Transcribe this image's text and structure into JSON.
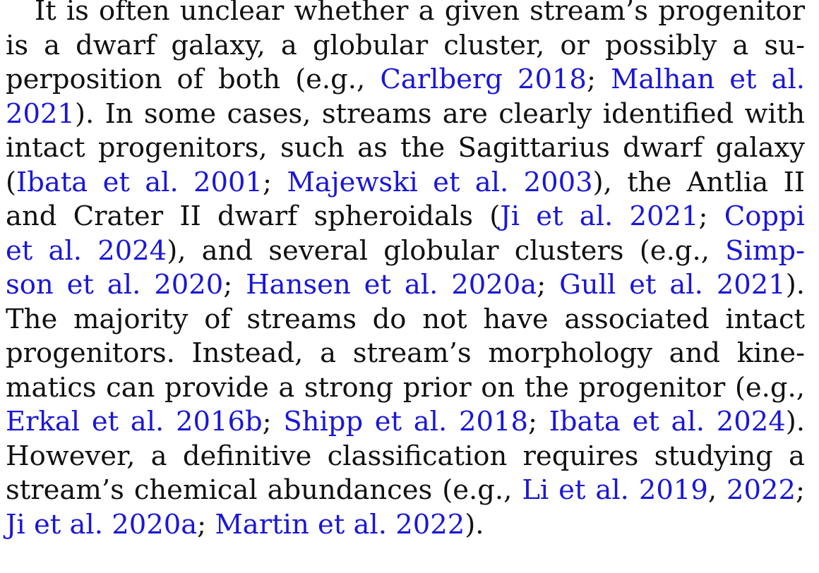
{
  "paragraph": {
    "lines": [
      [
        {
          "t": "It is often unclear whether a given stream’s progenitor"
        }
      ],
      [
        {
          "t": "is a dwarf galaxy, a globular cluster, or possibly a su-"
        }
      ],
      [
        {
          "t": "perposition of both (e.g., "
        },
        {
          "t": "Carlberg 2018",
          "link": true
        },
        {
          "t": "; "
        },
        {
          "t": "Malhan et al.",
          "link": true
        }
      ],
      [
        {
          "t": "2021",
          "link": true
        },
        {
          "t": "). In some cases, streams are clearly identified with"
        }
      ],
      [
        {
          "t": "intact progenitors, such as the Sagittarius dwarf galaxy"
        }
      ],
      [
        {
          "t": "("
        },
        {
          "t": "Ibata et al. 2001",
          "link": true
        },
        {
          "t": "; "
        },
        {
          "t": "Majewski et al. 2003",
          "link": true
        },
        {
          "t": "), the Antlia II"
        }
      ],
      [
        {
          "t": "and Crater II dwarf spheroidals ("
        },
        {
          "t": "Ji et al. 2021",
          "link": true
        },
        {
          "t": "; "
        },
        {
          "t": "Coppi",
          "link": true
        }
      ],
      [
        {
          "t": "et al. 2024",
          "link": true
        },
        {
          "t": "), and several globular clusters (e.g., "
        },
        {
          "t": "Simp-",
          "link": true
        }
      ],
      [
        {
          "t": "son et al. 2020",
          "link": true
        },
        {
          "t": "; "
        },
        {
          "t": "Hansen et al. 2020a",
          "link": true
        },
        {
          "t": "; "
        },
        {
          "t": "Gull et al. 2021",
          "link": true
        },
        {
          "t": ")."
        }
      ],
      [
        {
          "t": "The majority of streams do not have associated intact"
        }
      ],
      [
        {
          "t": "progenitors.  Instead, a stream’s morphology and kine-"
        }
      ],
      [
        {
          "t": "matics can provide a strong prior on the progenitor (e.g.,"
        }
      ],
      [
        {
          "t": "Erkal",
          "link": true
        },
        {
          "t": " et al. 2016b",
          "link": true
        },
        {
          "t": "; "
        },
        {
          "t": "Shipp et al. 2018",
          "link": true
        },
        {
          "t": "; "
        },
        {
          "t": "Ibata et al. 2024",
          "link": true
        },
        {
          "t": ")."
        }
      ],
      [
        {
          "t": "However, a definitive classification requires studying a"
        }
      ],
      [
        {
          "t": "stream’s chemical abundances (e.g., "
        },
        {
          "t": "Li et al. 2019",
          "link": true
        },
        {
          "t": ", "
        },
        {
          "t": "2022",
          "link": true
        },
        {
          "t": ";"
        }
      ],
      [
        {
          "t": "Ji et al. 2020a",
          "link": true
        },
        {
          "t": "; "
        },
        {
          "t": "Martin et al. 2022",
          "link": true
        },
        {
          "t": ")."
        }
      ]
    ]
  }
}
